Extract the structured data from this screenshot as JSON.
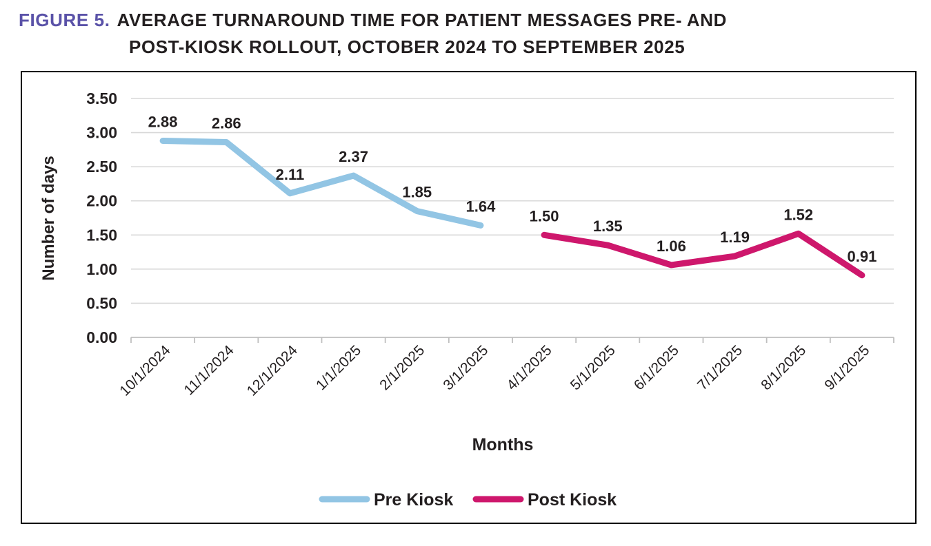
{
  "figure": {
    "label": "FIGURE 5.",
    "title_line1": "AVERAGE TURNAROUND TIME FOR PATIENT MESSAGES PRE- AND",
    "title_line2": "POST-KIOSK ROLLOUT, OCTOBER 2024 TO SEPTEMBER 2025"
  },
  "colors": {
    "figure_label": "#5A52A8",
    "title_text": "#231F20",
    "pre_kiosk": "#92C5E4",
    "post_kiosk": "#CE176C",
    "gridline": "#D9D9D9",
    "axis": "#BFBFBF",
    "label_text": "#231F20",
    "border": "#000000"
  },
  "chart_data": {
    "type": "line",
    "title": "Average turnaround time for patient messages pre- and post-kiosk rollout, October 2024 to September 2025",
    "xlabel": "Months",
    "ylabel": "Number of days",
    "ylim": [
      0,
      3.5
    ],
    "ytick_step": 0.5,
    "ytick_labels": [
      "0.00",
      "0.50",
      "1.00",
      "1.50",
      "2.00",
      "2.50",
      "3.00",
      "3.50"
    ],
    "grid": true,
    "legend_position": "bottom",
    "categories": [
      "10/1/2024",
      "11/1/2024",
      "12/1/2024",
      "1/1/2025",
      "2/1/2025",
      "3/1/2025",
      "4/1/2025",
      "5/1/2025",
      "6/1/2025",
      "7/1/2025",
      "8/1/2025",
      "9/1/2025"
    ],
    "series": [
      {
        "name": "Pre Kiosk",
        "color": "#92C5E4",
        "values": [
          2.88,
          2.86,
          2.11,
          2.37,
          1.85,
          1.64,
          null,
          null,
          null,
          null,
          null,
          null
        ]
      },
      {
        "name": "Post Kiosk",
        "color": "#CE176C",
        "values": [
          null,
          null,
          null,
          null,
          null,
          null,
          1.5,
          1.35,
          1.06,
          1.19,
          1.52,
          0.91
        ]
      }
    ]
  }
}
